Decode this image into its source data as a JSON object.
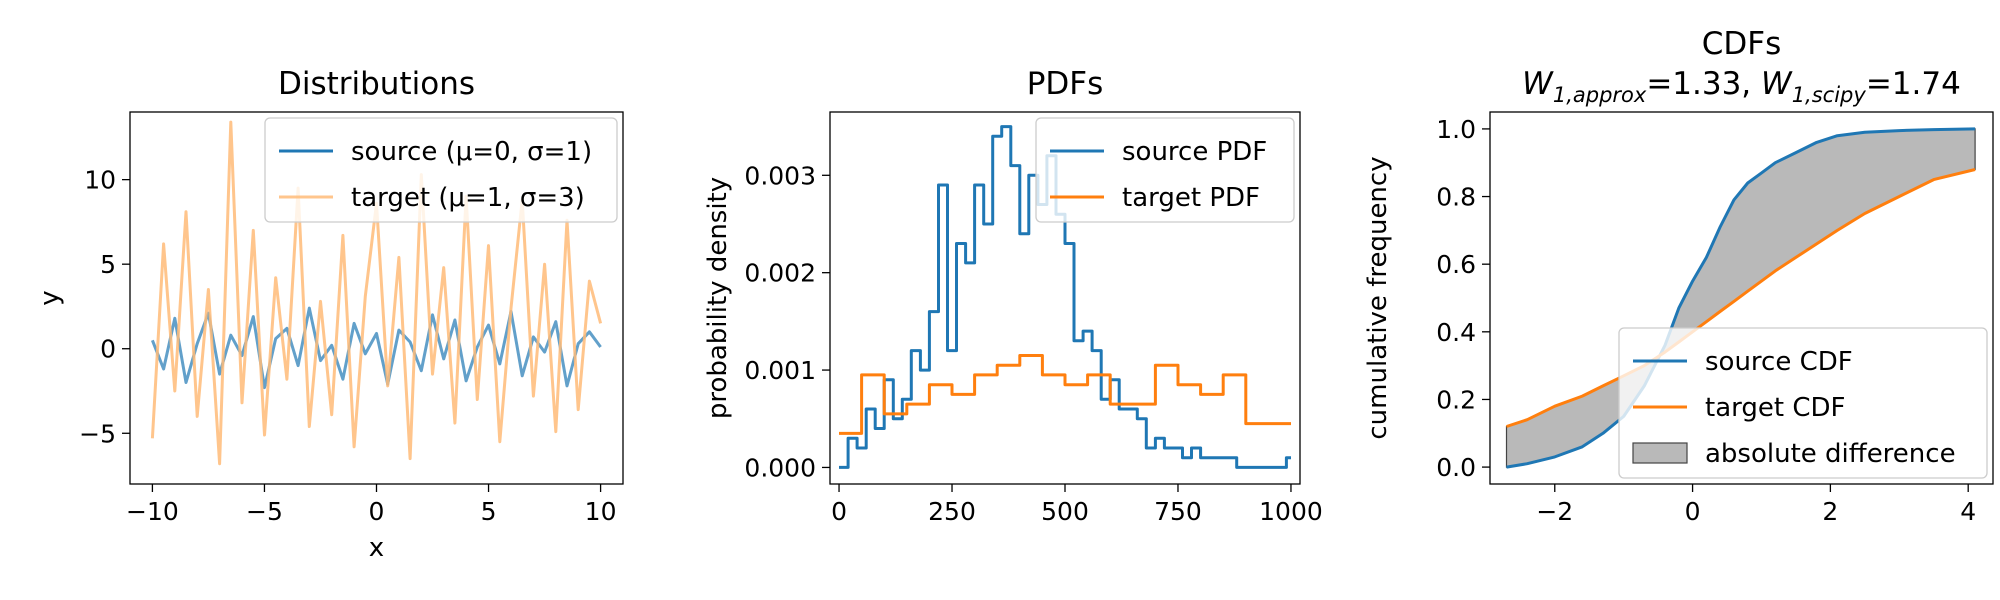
{
  "chart_data": [
    {
      "type": "line",
      "title": "Distributions",
      "xlabel": "x",
      "ylabel": "y",
      "xlim": [
        -11,
        11
      ],
      "ylim": [
        -8,
        14
      ],
      "xticks": [
        -10,
        -5,
        0,
        5,
        10
      ],
      "yticks": [
        -5,
        0,
        5,
        10
      ],
      "xtick_labels": [
        "−10",
        "−5",
        "0",
        "5",
        "10"
      ],
      "ytick_labels": [
        "−5",
        "0",
        "5",
        "10"
      ],
      "legend_position": "top-right",
      "grid": false,
      "series": [
        {
          "name": "source (μ=0, σ=1)",
          "color": "#1f77b4",
          "x": [
            -10,
            -9.5,
            -9,
            -8.5,
            -8,
            -7.5,
            -7,
            -6.5,
            -6,
            -5.5,
            -5,
            -4.5,
            -4,
            -3.5,
            -3,
            -2.5,
            -2,
            -1.5,
            -1,
            -0.5,
            0,
            0.5,
            1,
            1.5,
            2,
            2.5,
            3,
            3.5,
            4,
            4.5,
            5,
            5.5,
            6,
            6.5,
            7,
            7.5,
            8,
            8.5,
            9,
            9.5,
            10
          ],
          "y": [
            0.5,
            -1.2,
            1.8,
            -2.0,
            0.3,
            2.1,
            -1.5,
            0.8,
            -0.4,
            1.9,
            -2.3,
            0.6,
            1.2,
            -1.0,
            2.4,
            -0.7,
            0.2,
            -1.8,
            1.5,
            -0.3,
            0.9,
            -2.1,
            1.1,
            0.4,
            -1.3,
            2.0,
            -0.6,
            1.7,
            -1.9,
            0.1,
            1.4,
            -0.9,
            2.2,
            -1.6,
            0.7,
            -0.2,
            1.6,
            -2.2,
            0.3,
            1.0,
            0.1
          ]
        },
        {
          "name": "target (μ=1, σ=3)",
          "color": "#ffbb78",
          "x": [
            -10,
            -9.5,
            -9,
            -8.5,
            -8,
            -7.5,
            -7,
            -6.5,
            -6,
            -5.5,
            -5,
            -4.5,
            -4,
            -3.5,
            -3,
            -2.5,
            -2,
            -1.5,
            -1,
            -0.5,
            0,
            0.5,
            1,
            1.5,
            2,
            2.5,
            3,
            3.5,
            4,
            4.5,
            5,
            5.5,
            6,
            6.5,
            7,
            7.5,
            8,
            8.5,
            9,
            9.5,
            10
          ],
          "y": [
            -5.3,
            6.2,
            -2.5,
            8.1,
            -4.0,
            3.5,
            -6.8,
            13.4,
            -3.2,
            7.0,
            -5.1,
            4.2,
            -1.8,
            9.5,
            -4.6,
            2.8,
            -3.9,
            6.7,
            -5.8,
            3.1,
            8.6,
            -2.2,
            5.4,
            -6.5,
            10.3,
            -1.5,
            4.8,
            -4.4,
            9.0,
            -3.0,
            6.1,
            -5.5,
            2.4,
            8.8,
            -2.8,
            5.0,
            -4.9,
            7.6,
            -3.6,
            4.0,
            1.5
          ]
        }
      ]
    },
    {
      "type": "line",
      "title": "PDFs",
      "xlabel": "",
      "ylabel": "probability density",
      "xlim": [
        -20,
        1020
      ],
      "ylim": [
        -0.00017,
        0.00365
      ],
      "xticks": [
        0,
        250,
        500,
        750,
        1000
      ],
      "yticks": [
        0,
        0.001,
        0.002,
        0.003
      ],
      "xtick_labels": [
        "0",
        "250",
        "500",
        "750",
        "1000"
      ],
      "ytick_labels": [
        "0.000",
        "0.001",
        "0.002",
        "0.003"
      ],
      "legend_position": "top-right",
      "grid": false,
      "series": [
        {
          "name": "source PDF",
          "color": "#1f77b4",
          "x": [
            0,
            20,
            40,
            60,
            80,
            100,
            120,
            140,
            160,
            180,
            200,
            220,
            240,
            260,
            280,
            300,
            320,
            340,
            360,
            380,
            400,
            420,
            440,
            460,
            480,
            500,
            520,
            540,
            560,
            580,
            600,
            620,
            640,
            660,
            680,
            700,
            720,
            740,
            760,
            780,
            800,
            840,
            880,
            920,
            960,
            990,
            1000
          ],
          "y": [
            0.0,
            0.0003,
            0.0002,
            0.0006,
            0.0004,
            0.0009,
            0.0005,
            0.0007,
            0.0012,
            0.001,
            0.0016,
            0.0029,
            0.0012,
            0.0023,
            0.0021,
            0.0029,
            0.0025,
            0.0034,
            0.0035,
            0.0031,
            0.0024,
            0.003,
            0.0027,
            0.0032,
            0.0026,
            0.0023,
            0.0013,
            0.0014,
            0.0012,
            0.0007,
            0.0009,
            0.0006,
            0.0006,
            0.0005,
            0.0002,
            0.0003,
            0.0002,
            0.0002,
            0.0001,
            0.0002,
            0.0001,
            0.0001,
            0.0,
            0.0,
            0.0,
            0.0001,
            0.0001
          ]
        },
        {
          "name": "target PDF",
          "color": "#ff7f0e",
          "x": [
            0,
            50,
            100,
            150,
            200,
            250,
            300,
            350,
            400,
            450,
            500,
            550,
            600,
            650,
            700,
            750,
            800,
            850,
            900,
            950,
            1000
          ],
          "y": [
            0.00035,
            0.00095,
            0.00055,
            0.00065,
            0.00085,
            0.00075,
            0.00095,
            0.00105,
            0.00115,
            0.00095,
            0.00085,
            0.00095,
            0.00065,
            0.00065,
            0.00105,
            0.00085,
            0.00075,
            0.00095,
            0.00045,
            0.00045,
            0.00045
          ]
        }
      ]
    },
    {
      "type": "area",
      "title": "CDFs",
      "subtitle_parts": [
        "W",
        "1,approx",
        "=1.33, ",
        "W",
        "1,scipy",
        "=1.74"
      ],
      "xlabel": "",
      "ylabel": "cumulative frequency",
      "xlim": [
        -2.94,
        4.36
      ],
      "ylim": [
        -0.05,
        1.05
      ],
      "xticks": [
        -2,
        0,
        2,
        4
      ],
      "yticks": [
        0,
        0.2,
        0.4,
        0.6,
        0.8,
        1.0
      ],
      "xtick_labels": [
        "−2",
        "0",
        "2",
        "4"
      ],
      "ytick_labels": [
        "0.0",
        "0.2",
        "0.4",
        "0.6",
        "0.8",
        "1.0"
      ],
      "legend_position": "bottom-right",
      "grid": false,
      "series": [
        {
          "name": "source CDF",
          "color": "#1f77b4",
          "x": [
            -2.7,
            -2.4,
            -2.0,
            -1.6,
            -1.3,
            -1.0,
            -0.7,
            -0.4,
            -0.2,
            0.0,
            0.2,
            0.4,
            0.6,
            0.8,
            1.0,
            1.2,
            1.5,
            1.8,
            2.1,
            2.5,
            3.0,
            3.5,
            4.1
          ],
          "y": [
            0.0,
            0.01,
            0.03,
            0.06,
            0.1,
            0.15,
            0.24,
            0.36,
            0.47,
            0.55,
            0.62,
            0.71,
            0.79,
            0.84,
            0.87,
            0.9,
            0.93,
            0.96,
            0.98,
            0.99,
            0.995,
            0.998,
            1.0
          ]
        },
        {
          "name": "target CDF",
          "color": "#ff7f0e",
          "x": [
            -2.7,
            -2.4,
            -2.0,
            -1.6,
            -1.3,
            -1.0,
            -0.7,
            -0.4,
            -0.2,
            0.0,
            0.2,
            0.4,
            0.6,
            0.8,
            1.0,
            1.2,
            1.5,
            1.8,
            2.1,
            2.5,
            3.0,
            3.5,
            4.1
          ],
          "y": [
            0.12,
            0.14,
            0.18,
            0.21,
            0.24,
            0.27,
            0.3,
            0.34,
            0.37,
            0.4,
            0.43,
            0.46,
            0.49,
            0.52,
            0.55,
            0.58,
            0.62,
            0.66,
            0.7,
            0.75,
            0.8,
            0.85,
            0.88
          ]
        },
        {
          "name": "absolute difference",
          "color": "#808080"
        }
      ]
    }
  ]
}
